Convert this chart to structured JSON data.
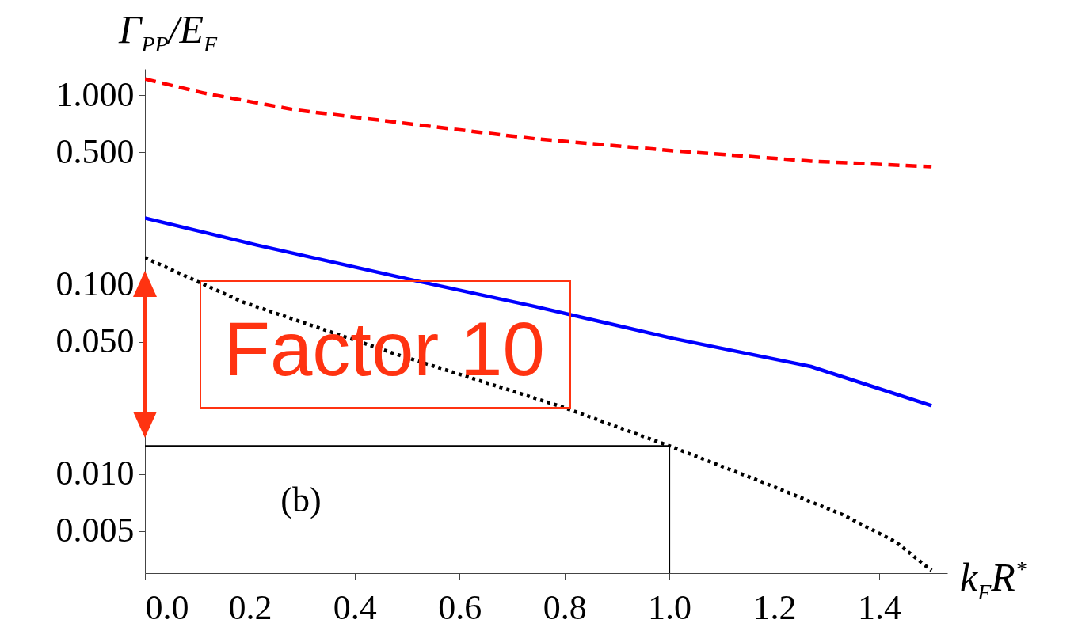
{
  "chart_data": {
    "type": "line",
    "xlabel": "k$_{F}$R$^{*}$",
    "ylabel": "Γ$_{PP}$/E$_{F}$",
    "log": "y",
    "xlim": [
      0,
      1.53
    ],
    "ylim": [
      0.003,
      1.38
    ],
    "xticks": [
      {
        "value": 0,
        "label": "0.0"
      },
      {
        "value": 0.2,
        "label": "0.2"
      },
      {
        "value": 0.4,
        "label": "0.4"
      },
      {
        "value": 0.6,
        "label": "0.6"
      },
      {
        "value": 0.8,
        "label": "0.8"
      },
      {
        "value": 1,
        "label": "1.0"
      },
      {
        "value": 1.2,
        "label": "1.2"
      },
      {
        "value": 1.4,
        "label": "1.4"
      }
    ],
    "yticks": [
      {
        "value": 0.005,
        "label": "0.005"
      },
      {
        "value": 0.01,
        "label": "0.010"
      },
      {
        "value": 0.05,
        "label": "0.050"
      },
      {
        "value": 0.1,
        "label": "0.100"
      },
      {
        "value": 0.5,
        "label": "0.500"
      },
      {
        "value": 1,
        "label": "1.000"
      }
    ],
    "grid": false,
    "marker": "none",
    "annotations": [
      "Factor 10",
      "(b)"
    ],
    "series": [
      {
        "color": "#ff0000",
        "line_style": "dashed",
        "x": [
          0,
          0.111,
          0.285,
          0.575,
          0.745,
          1.007,
          1.27,
          1.5
        ],
        "values": [
          1.22,
          1.03,
          0.84,
          0.67,
          0.59,
          0.51,
          0.45,
          0.42
        ]
      },
      {
        "color": "#0000ff",
        "line_style": "solid",
        "x": [
          0,
          0.214,
          0.51,
          0.742,
          1.008,
          1.27,
          1.5
        ],
        "values": [
          0.225,
          0.162,
          0.106,
          0.077,
          0.052,
          0.037,
          0.023
        ]
      },
      {
        "color": "#000000",
        "line_style": "dotted",
        "x": [
          0,
          0.187,
          0.479,
          0.795,
          1.0,
          1.181,
          1.331,
          1.431,
          1.5
        ],
        "values": [
          0.139,
          0.081,
          0.043,
          0.0227,
          0.0141,
          0.009,
          0.0061,
          0.0044,
          0.0031
        ]
      },
      {
        "color": "#000000",
        "line_style": "solid",
        "x": [
          0,
          1,
          1
        ],
        "values": [
          0.0141,
          0.0141,
          0.003
        ]
      }
    ]
  }
}
